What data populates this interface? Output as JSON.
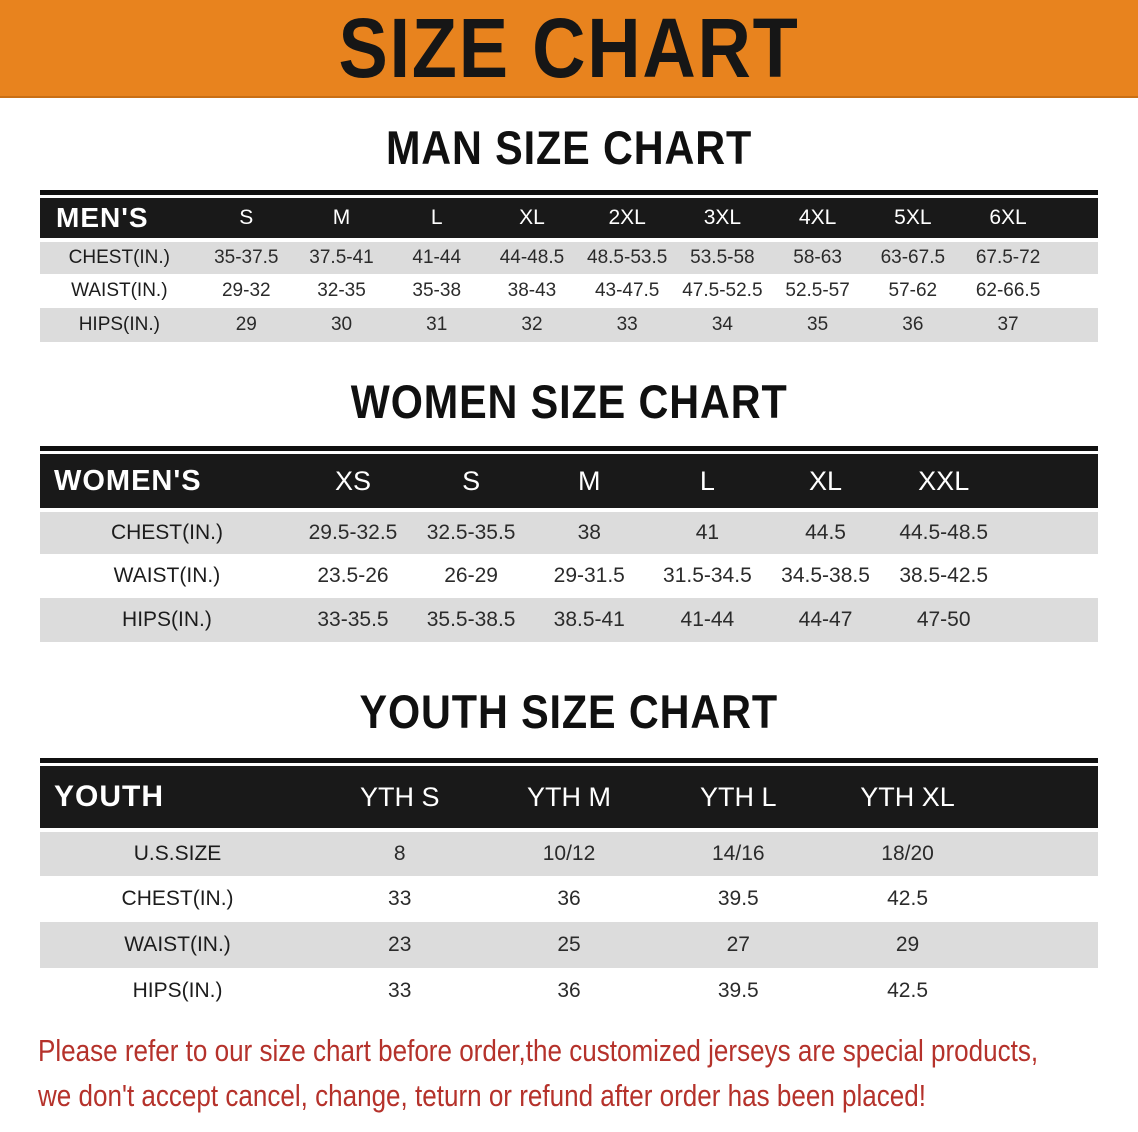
{
  "banner": {
    "title": "SIZE CHART",
    "bg_color": "#E8831E",
    "text_color": "#161616"
  },
  "colors": {
    "header_bar": "#191919",
    "row_alt": "#DCDCDC",
    "disclaimer_red": "#B5322B"
  },
  "sections": {
    "man_heading": "MAN SIZE CHART",
    "women_heading": "WOMEN SIZE CHART",
    "youth_heading": "YOUTH SIZE CHART"
  },
  "tables": {
    "men": {
      "label": "MEN'S",
      "sizes": [
        "S",
        "M",
        "L",
        "XL",
        "2XL",
        "3XL",
        "4XL",
        "5XL",
        "6XL"
      ],
      "rows": [
        {
          "label": "CHEST(IN.)",
          "values": [
            "35-37.5",
            "37.5-41",
            "41-44",
            "44-48.5",
            "48.5-53.5",
            "53.5-58",
            "58-63",
            "63-67.5",
            "67.5-72"
          ]
        },
        {
          "label": "WAIST(IN.)",
          "values": [
            "29-32",
            "32-35",
            "35-38",
            "38-43",
            "43-47.5",
            "47.5-52.5",
            "52.5-57",
            "57-62",
            "62-66.5"
          ]
        },
        {
          "label": "HIPS(IN.)",
          "values": [
            "29",
            "30",
            "31",
            "32",
            "33",
            "34",
            "35",
            "36",
            "37"
          ]
        }
      ]
    },
    "women": {
      "label": "WOMEN'S",
      "sizes": [
        "XS",
        "S",
        "M",
        "L",
        "XL",
        "XXL"
      ],
      "rows": [
        {
          "label": "CHEST(IN.)",
          "values": [
            "29.5-32.5",
            "32.5-35.5",
            "38",
            "41",
            "44.5",
            "44.5-48.5"
          ]
        },
        {
          "label": "WAIST(IN.)",
          "values": [
            "23.5-26",
            "26-29",
            "29-31.5",
            "31.5-34.5",
            "34.5-38.5",
            "38.5-42.5"
          ]
        },
        {
          "label": "HIPS(IN.)",
          "values": [
            "33-35.5",
            "35.5-38.5",
            "38.5-41",
            "41-44",
            "44-47",
            "47-50"
          ]
        }
      ]
    },
    "youth": {
      "label": "YOUTH",
      "sizes": [
        "YTH S",
        "YTH M",
        "YTH L",
        "YTH XL"
      ],
      "rows": [
        {
          "label": "U.S.SIZE",
          "values": [
            "8",
            "10/12",
            "14/16",
            "18/20"
          ]
        },
        {
          "label": "CHEST(IN.)",
          "values": [
            "33",
            "36",
            "39.5",
            "42.5"
          ]
        },
        {
          "label": "WAIST(IN.)",
          "values": [
            "23",
            "25",
            "27",
            "29"
          ]
        },
        {
          "label": "HIPS(IN.)",
          "values": [
            "33",
            "36",
            "39.5",
            "42.5"
          ]
        }
      ]
    }
  },
  "disclaimer": {
    "line1": "Please refer to our size chart before order,the customized jerseys are special products,",
    "line2": "we don't accept cancel, change, teturn or refund after order has been placed!"
  }
}
